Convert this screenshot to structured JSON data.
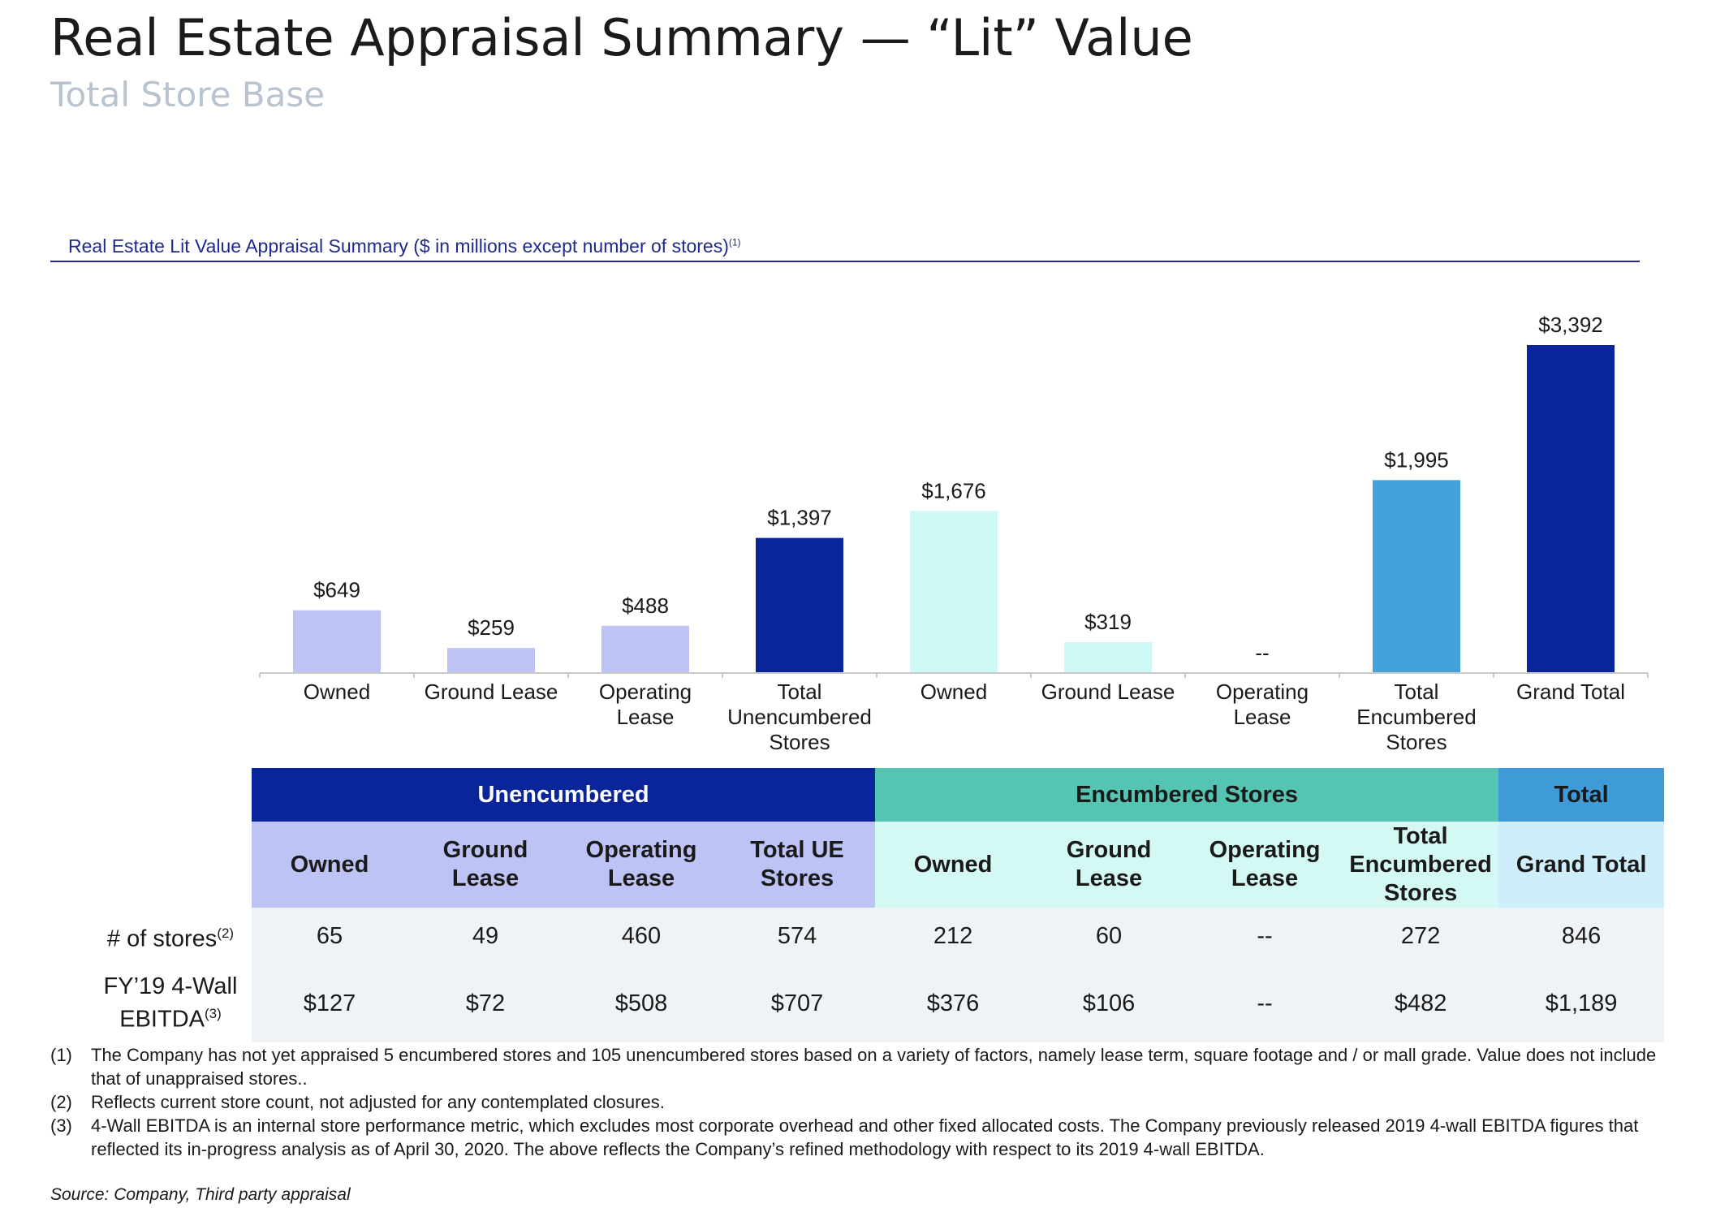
{
  "title": "Real Estate Appraisal Summary — “Lit” Value",
  "subtitle": "Total Store Base",
  "chart_caption": "Real Estate Lit Value Appraisal Summary ($ in millions except number of stores)",
  "chart_caption_note": "(1)",
  "chart_data": {
    "type": "bar",
    "title": "Real Estate Lit Value Appraisal Summary ($ in millions except number of stores)",
    "xlabel": "",
    "ylabel": "",
    "ylim": [
      0,
      3392
    ],
    "categories": [
      [
        "Owned"
      ],
      [
        "Ground Lease"
      ],
      [
        "Operating",
        "Lease"
      ],
      [
        "Total",
        "Unencumbered",
        "Stores"
      ],
      [
        "Owned"
      ],
      [
        "Ground Lease"
      ],
      [
        "Operating",
        "Lease"
      ],
      [
        "Total",
        "Encumbered",
        "Stores"
      ],
      [
        "Grand Total"
      ]
    ],
    "values": [
      649,
      259,
      488,
      1397,
      1676,
      319,
      0,
      1995,
      3392
    ],
    "labels": [
      "$649",
      "$259",
      "$488",
      "$1,397",
      "$1,676",
      "$319",
      "--",
      "$1,995",
      "$3,392"
    ],
    "colors": [
      "#bdc3f5",
      "#bdc3f5",
      "#bdc3f5",
      "#0a249a",
      "#cef9f4",
      "#cef9f4",
      "#cef9f4",
      "#43a1db",
      "#0a249a"
    ]
  },
  "table": {
    "groups": [
      "Unencumbered",
      "Encumbered Stores",
      "Total"
    ],
    "subheaders": [
      [
        "Owned"
      ],
      [
        "Ground",
        "Lease"
      ],
      [
        "Operating",
        "Lease"
      ],
      [
        "Total UE",
        "Stores"
      ],
      [
        "Owned"
      ],
      [
        "Ground",
        "Lease"
      ],
      [
        "Operating",
        "Lease"
      ],
      [
        "Total",
        "Encumbered",
        "Stores"
      ],
      [
        "Grand Total"
      ]
    ],
    "rows": [
      {
        "label_lines": [
          "# of stores"
        ],
        "note": "(2)",
        "values": [
          "65",
          "49",
          "460",
          "574",
          "212",
          "60",
          "--",
          "272",
          "846"
        ]
      },
      {
        "label_lines": [
          "FY’19 4-Wall",
          "EBITDA"
        ],
        "note": "(3)",
        "values": [
          "$127",
          "$72",
          "$508",
          "$707",
          "$376",
          "$106",
          "--",
          "$482",
          "$1,189"
        ]
      }
    ]
  },
  "footnotes": [
    {
      "num": "(1)",
      "text": "The Company has not yet appraised 5 encumbered stores and 105 unencumbered stores based on a variety of factors, namely lease term, square footage and / or mall grade. Value does not include that of unappraised stores.."
    },
    {
      "num": "(2)",
      "text": "Reflects current store count, not adjusted for any contemplated closures."
    },
    {
      "num": "(3)",
      "text": "4-Wall EBITDA is an internal store performance metric, which excludes most corporate overhead and other fixed allocated costs. The Company previously released 2019 4-wall EBITDA figures that reflected its in-progress analysis as of April 30, 2020. The above reflects the Company’s refined methodology with respect to its 2019 4-wall EBITDA."
    }
  ],
  "source": "Source: Company, Third party appraisal"
}
